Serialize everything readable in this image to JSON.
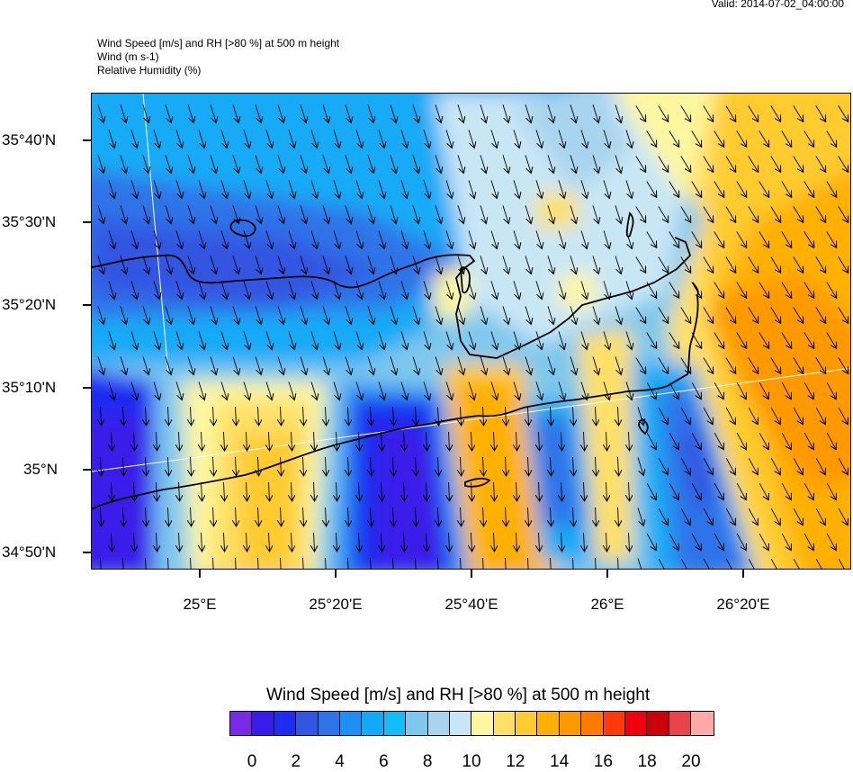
{
  "valid_time": "Valid: 2014-07-02_04:00:00",
  "header": {
    "line1": "Wind Speed [m/s] and RH [>80 %] at 500 m height",
    "line2": "Wind   (m s-1)",
    "line3": "Relative Humidity   (%)"
  },
  "map": {
    "lat_labels": [
      "35°40'N",
      "35°30'N",
      "35°20'N",
      "35°10'N",
      "35°N",
      "34°50'N"
    ],
    "lon_labels": [
      "25°E",
      "25°20'E",
      "25°40'E",
      "26°E",
      "26°20'E"
    ],
    "wind_direction": "north-northwest flow",
    "colors": {
      "coast": "#000000",
      "graticule": "#ffffff"
    }
  },
  "colorbar": {
    "title": "Wind Speed [m/s] and RH [>80 %] at 500 m height",
    "colors": [
      "#7a2ae6",
      "#3b1be8",
      "#1d2cf0",
      "#3056e2",
      "#2e73e8",
      "#1e8ff5",
      "#12aaf7",
      "#13bdf8",
      "#7ec8ee",
      "#a9d4ef",
      "#c9e6f5",
      "#fff7a0",
      "#ffe066",
      "#ffcb2e",
      "#ffb000",
      "#ff9900",
      "#ff7a00",
      "#ff3a0a",
      "#f0000e",
      "#cc0008",
      "#e8454a",
      "#ffaaa8"
    ],
    "labels": [
      "0",
      "2",
      "4",
      "6",
      "8",
      "10",
      "12",
      "14",
      "16",
      "18",
      "20"
    ]
  }
}
